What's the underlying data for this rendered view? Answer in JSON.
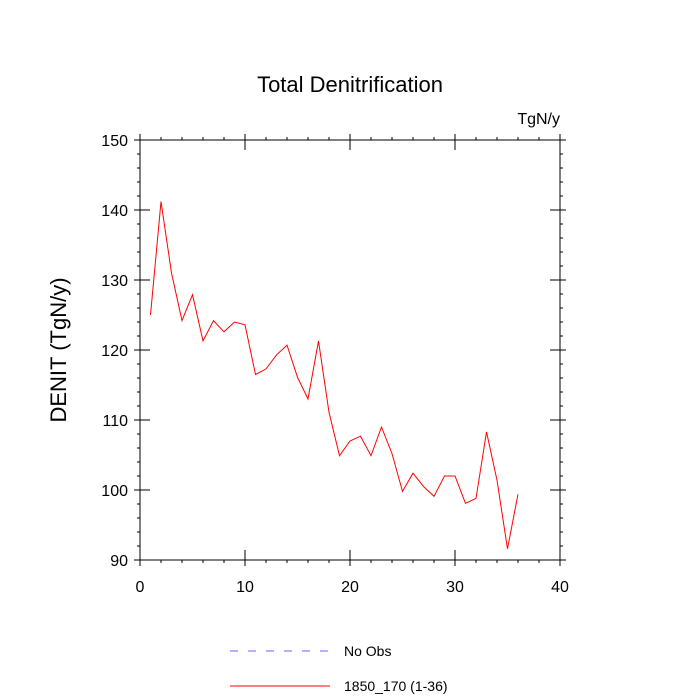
{
  "chart_data": {
    "type": "line",
    "title": "Total Denitrification",
    "units_label": "TgN/y",
    "ylabel": "DENIT  (TgN/y)",
    "xlabel": "",
    "xlim": [
      0,
      40
    ],
    "ylim": [
      90,
      150
    ],
    "xticks": [
      0,
      10,
      20,
      30,
      40
    ],
    "yticks": [
      90,
      100,
      110,
      120,
      130,
      140,
      150
    ],
    "legend_position": "bottom",
    "series": [
      {
        "name": "No Obs",
        "color": "#6666ff",
        "dash": true,
        "x": [],
        "y": []
      },
      {
        "name": "1850_170 (1-36)",
        "color": "#ff0000",
        "dash": false,
        "x": [
          1,
          2,
          3,
          4,
          5,
          6,
          7,
          8,
          9,
          10,
          11,
          12,
          13,
          14,
          15,
          16,
          17,
          18,
          19,
          20,
          21,
          22,
          23,
          24,
          25,
          26,
          27,
          28,
          29,
          30,
          31,
          32,
          33,
          34,
          35,
          36
        ],
        "y": [
          125.0,
          141.2,
          131.0,
          124.2,
          127.9,
          121.3,
          124.2,
          122.6,
          124.0,
          123.6,
          116.5,
          117.3,
          119.3,
          120.7,
          116.1,
          113.0,
          121.3,
          111.1,
          104.9,
          107.0,
          107.7,
          104.9,
          109.0,
          105.2,
          99.8,
          102.4,
          100.5,
          99.1,
          102.0,
          102.0,
          98.1,
          98.8,
          108.3,
          101.4,
          91.6,
          99.4
        ]
      }
    ]
  }
}
